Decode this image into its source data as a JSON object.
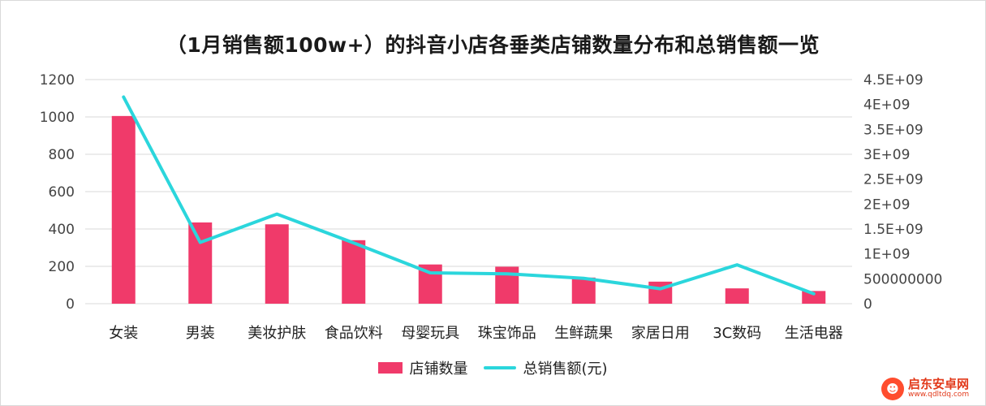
{
  "chart_data": {
    "type": "bar",
    "title": "（1月销售额100w+）的抖音小店各垂类店铺数量分布和总销售额一览",
    "categories": [
      "女装",
      "男装",
      "美妆护肤",
      "食品饮料",
      "母婴玩具",
      "珠宝饰品",
      "生鲜蔬果",
      "家居日用",
      "3C数码",
      "生活电器"
    ],
    "series": [
      {
        "name": "店铺数量",
        "kind": "bar",
        "axis": "left",
        "color": "#f03a6a",
        "values": [
          1005,
          435,
          425,
          340,
          210,
          198,
          140,
          118,
          82,
          68
        ]
      },
      {
        "name": "总销售额(元)",
        "kind": "line",
        "axis": "right",
        "color": "#2bd6dc",
        "values": [
          4150000000,
          1230000000,
          1800000000,
          1220000000,
          620000000,
          600000000,
          510000000,
          300000000,
          780000000,
          200000000
        ]
      }
    ],
    "ylim_left": [
      0,
      1200
    ],
    "yticks_left": [
      "0",
      "200",
      "400",
      "600",
      "800",
      "1000",
      "1200"
    ],
    "ylim_right": [
      0,
      4500000000
    ],
    "yticks_right": [
      "0",
      "500000000",
      "1E+09",
      "1.5E+09",
      "2E+09",
      "2.5E+09",
      "3E+09",
      "3.5E+09",
      "4E+09",
      "4.5E+09"
    ],
    "grid": true,
    "legend_position": "bottom"
  },
  "watermark": {
    "name": "启东安卓网",
    "url": "www.qdltdq.com"
  }
}
